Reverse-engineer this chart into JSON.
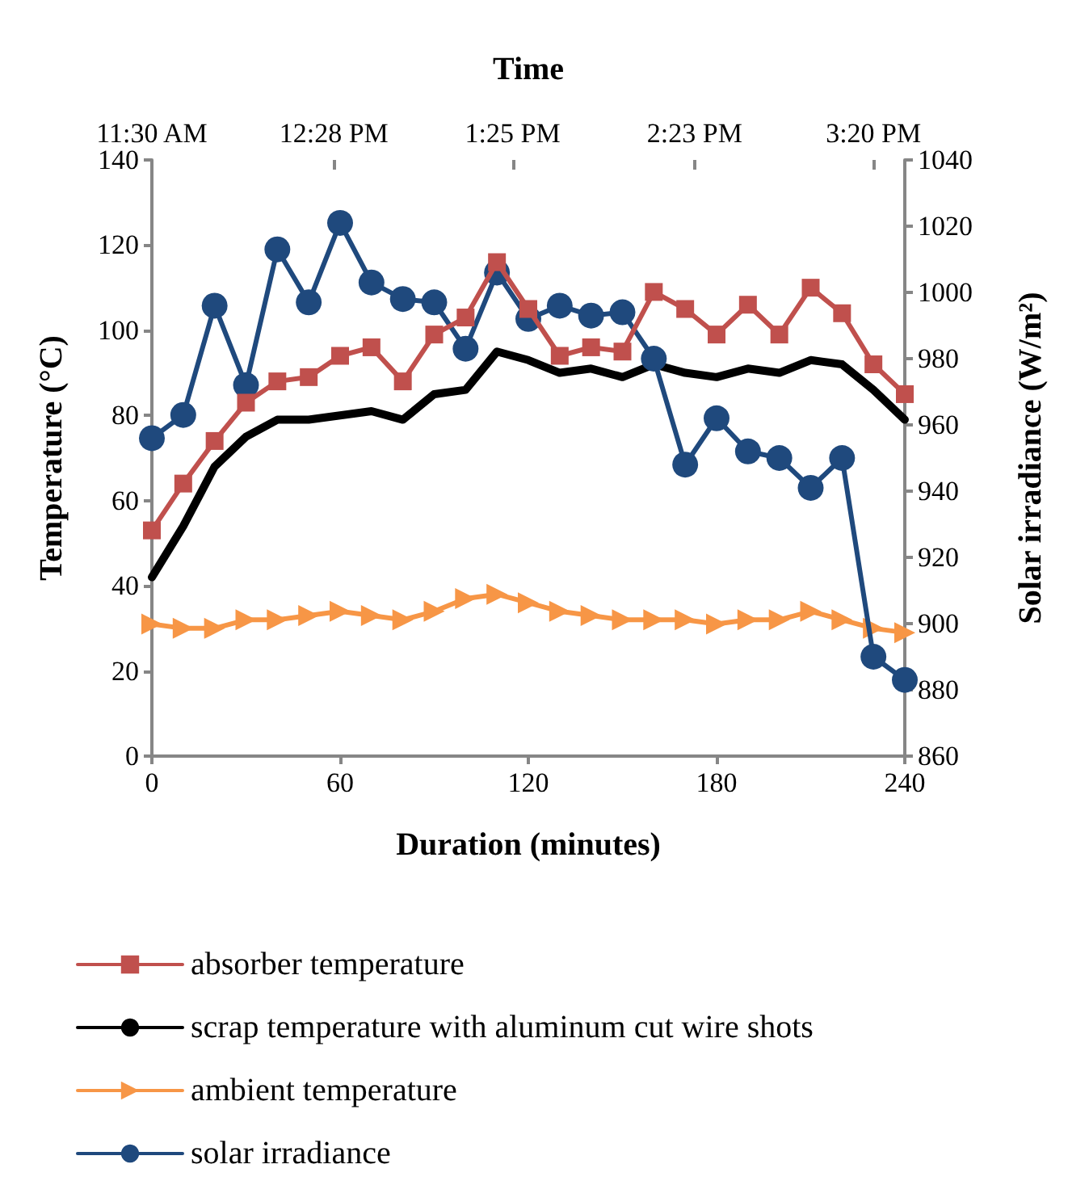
{
  "chart_data": {
    "type": "line",
    "xlabel": "Duration (minutes)",
    "ylabel": "Temperature (°C)",
    "y2label": "Solar irradiance (W/m²)",
    "x2label": "Time",
    "x": [
      0,
      10,
      20,
      30,
      40,
      50,
      60,
      70,
      80,
      90,
      100,
      110,
      120,
      130,
      140,
      150,
      160,
      170,
      180,
      190,
      200,
      210,
      220,
      230,
      240
    ],
    "xlim": [
      0,
      240
    ],
    "xticks": [
      0,
      60,
      120,
      180,
      240
    ],
    "x2lim": [
      11.5,
      15.5
    ],
    "x2ticks": [
      {
        "value": 11.5,
        "label": "11:30 AM"
      },
      {
        "value": 12.4667,
        "label": "12:28 PM"
      },
      {
        "value": 13.4167,
        "label": "1:25 PM"
      },
      {
        "value": 14.3833,
        "label": "2:23 PM"
      },
      {
        "value": 15.3333,
        "label": "3:20 PM"
      }
    ],
    "ylim": [
      0,
      140
    ],
    "yticks": [
      0,
      20,
      40,
      60,
      80,
      100,
      120,
      140
    ],
    "y2lim": [
      860,
      1040
    ],
    "y2ticks": [
      860,
      880,
      900,
      920,
      940,
      960,
      980,
      1000,
      1020,
      1040
    ],
    "grid": false,
    "legend": "bottom",
    "series": [
      {
        "name": "absorber temperature",
        "color": "#c0504d",
        "marker": "square",
        "values": [
          53,
          64,
          74,
          83,
          88,
          89,
          94,
          96,
          88,
          99,
          103,
          116,
          105,
          94,
          96,
          95,
          109,
          105,
          99,
          106,
          99,
          110,
          104,
          92,
          85
        ]
      },
      {
        "name": "scrap temperature with aluminum cut wire shots",
        "color": "#000000",
        "marker": "none",
        "values": [
          42,
          54,
          68,
          75,
          79,
          79,
          80,
          81,
          79,
          85,
          86,
          95,
          93,
          90,
          91,
          89,
          92,
          90,
          89,
          91,
          90,
          93,
          92,
          86,
          79
        ]
      },
      {
        "name": "ambient temperature",
        "color": "#f79646",
        "marker": "triangle",
        "values": [
          31,
          30,
          30,
          32,
          32,
          33,
          34,
          33,
          32,
          34,
          37,
          38,
          36,
          34,
          33,
          32,
          32,
          32,
          31,
          32,
          32,
          34,
          32,
          30,
          29
        ]
      },
      {
        "name": "solar irradiance",
        "color": "#1f497d",
        "marker": "circle",
        "axis": "y2",
        "values": [
          956,
          963,
          996,
          972,
          1013,
          997,
          1021,
          1003,
          998,
          997,
          983,
          1006,
          992,
          996,
          993,
          994,
          980,
          948,
          962,
          952,
          950,
          941,
          950,
          890,
          883
        ]
      }
    ]
  }
}
